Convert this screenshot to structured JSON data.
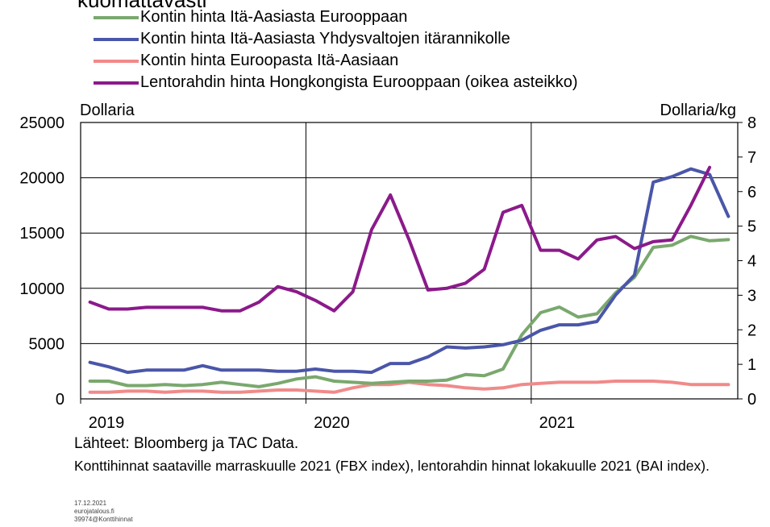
{
  "title_partial": "kuomattavasti",
  "chart_data": {
    "type": "line",
    "title": "",
    "ylabel_left": "Dollaria",
    "ylabel_right": "Dollaria/kg",
    "ylim_left": [
      0,
      25000
    ],
    "ylim_right": [
      0,
      8
    ],
    "yticks_left": [
      "0",
      "5000",
      "10000",
      "15000",
      "20000",
      "25000"
    ],
    "yticks_right": [
      "0",
      "1",
      "2",
      "3",
      "4",
      "5",
      "6",
      "7",
      "8"
    ],
    "xticks": [
      "2019",
      "2020",
      "2021"
    ],
    "grid": true,
    "legend_position": "top",
    "x_months": [
      "2019-01",
      "2019-02",
      "2019-03",
      "2019-04",
      "2019-05",
      "2019-06",
      "2019-07",
      "2019-08",
      "2019-09",
      "2019-10",
      "2019-11",
      "2019-12",
      "2020-01",
      "2020-02",
      "2020-03",
      "2020-04",
      "2020-05",
      "2020-06",
      "2020-07",
      "2020-08",
      "2020-09",
      "2020-10",
      "2020-11",
      "2020-12",
      "2021-01",
      "2021-02",
      "2021-03",
      "2021-04",
      "2021-05",
      "2021-06",
      "2021-07",
      "2021-08",
      "2021-09",
      "2021-10",
      "2021-11"
    ],
    "series": [
      {
        "name": "Kontin hinta Itä-Aasiasta Eurooppaan",
        "axis": "left",
        "color": "#7aa86e",
        "values": [
          1600,
          1600,
          1200,
          1200,
          1300,
          1200,
          1300,
          1500,
          1300,
          1100,
          1400,
          1800,
          2000,
          1600,
          1500,
          1400,
          1500,
          1600,
          1600,
          1700,
          2200,
          2100,
          2700,
          5800,
          7800,
          8300,
          7400,
          7700,
          9600,
          11000,
          13700,
          13900,
          14700,
          14300,
          14400
        ]
      },
      {
        "name": "Kontin hinta Itä-Aasiasta Yhdysvaltojen itärannikolle",
        "axis": "left",
        "color": "#4a56a8",
        "values": [
          3300,
          2900,
          2400,
          2600,
          2600,
          2600,
          3000,
          2600,
          2600,
          2600,
          2500,
          2500,
          2700,
          2500,
          2500,
          2400,
          3200,
          3200,
          3800,
          4700,
          4600,
          4700,
          4900,
          5300,
          6200,
          6700,
          6700,
          7000,
          9400,
          11200,
          19600,
          20100,
          20800,
          20300,
          16500
        ]
      },
      {
        "name": "Kontin hinta Euroopasta Itä-Aasiaan",
        "axis": "left",
        "color": "#f08a8a",
        "values": [
          600,
          600,
          700,
          700,
          600,
          700,
          700,
          600,
          600,
          700,
          800,
          800,
          700,
          600,
          1000,
          1300,
          1300,
          1500,
          1300,
          1200,
          1000,
          900,
          1000,
          1300,
          1400,
          1500,
          1500,
          1500,
          1600,
          1600,
          1600,
          1500,
          1300,
          1300,
          1300
        ]
      },
      {
        "name": "Lentorahdin hinta Hongkongista Eurooppaan (oikea asteikko)",
        "axis": "right",
        "color": "#8b1a8b",
        "values": [
          2.8,
          2.6,
          2.6,
          2.65,
          2.65,
          2.65,
          2.65,
          2.55,
          2.55,
          2.8,
          3.25,
          3.1,
          2.85,
          2.55,
          3.1,
          4.9,
          5.9,
          4.6,
          3.15,
          3.2,
          3.35,
          3.75,
          5.4,
          5.6,
          4.3,
          4.3,
          4.05,
          4.6,
          4.7,
          4.35,
          4.55,
          4.6,
          5.6,
          6.7,
          null
        ]
      }
    ]
  },
  "footer": {
    "source": "Lähteet:  Bloomberg ja TAC Data.",
    "note": "Konttihinnat saataville marraskuulle 2021 (FBX index), lentorahdin hinnat lokakuulle 2021 (BAI index).",
    "date": "17.12.2021",
    "site": "eurojatalous.fi",
    "code": "39974@Konttihinnat"
  }
}
